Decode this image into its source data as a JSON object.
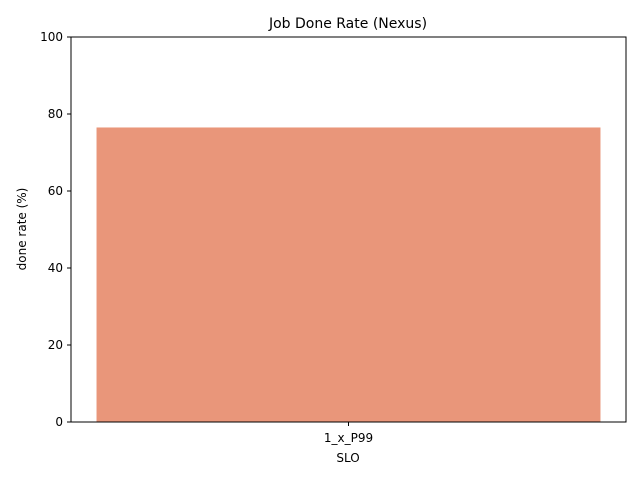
{
  "chart_data": {
    "type": "bar",
    "title": "Job Done Rate (Nexus)",
    "xlabel": "SLO",
    "ylabel": "done rate (%)",
    "categories": [
      "1_x_P99"
    ],
    "values": [
      76.5
    ],
    "ylim": [
      0,
      100
    ],
    "yticks": [
      "0",
      "20",
      "40",
      "60",
      "80",
      "100"
    ],
    "grid": false,
    "legend": "none",
    "bar_color": "#e9967a"
  }
}
